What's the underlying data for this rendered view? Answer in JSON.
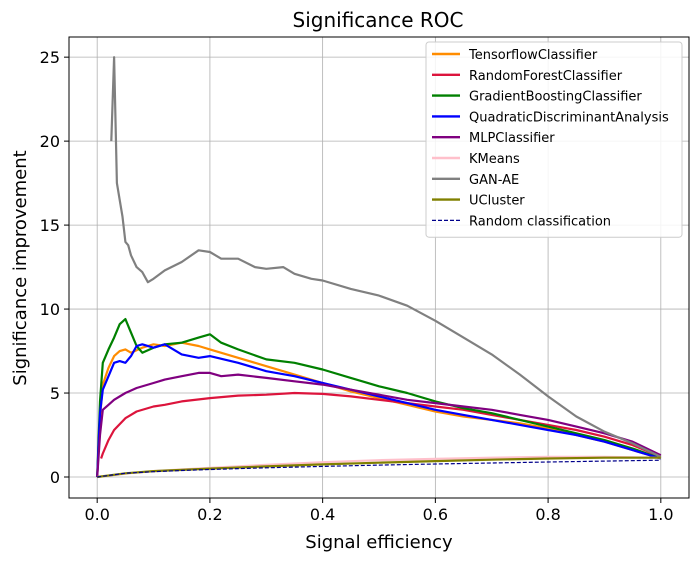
{
  "chart_data": {
    "type": "line",
    "title": "Significance ROC",
    "xlabel": "Signal efficiency",
    "ylabel": "Significance improvement",
    "xlim": [
      -0.05,
      1.05
    ],
    "ylim": [
      -1.25,
      26.2
    ],
    "xticks": [
      0.0,
      0.2,
      0.4,
      0.6,
      0.8,
      1.0
    ],
    "xtick_labels": [
      "0.0",
      "0.2",
      "0.4",
      "0.6",
      "0.8",
      "1.0"
    ],
    "yticks": [
      0,
      5,
      10,
      15,
      20,
      25
    ],
    "ytick_labels": [
      "0",
      "5",
      "10",
      "15",
      "20",
      "25"
    ],
    "grid": true,
    "legend_position": "top-right",
    "series": [
      {
        "name": "TensorflowClassifier",
        "color": "#ff8c00",
        "dash": "solid",
        "x": [
          0.0,
          0.005,
          0.01,
          0.02,
          0.03,
          0.04,
          0.05,
          0.06,
          0.08,
          0.1,
          0.12,
          0.15,
          0.18,
          0.2,
          0.25,
          0.3,
          0.35,
          0.4,
          0.45,
          0.5,
          0.55,
          0.6,
          0.65,
          0.7,
          0.75,
          0.8,
          0.85,
          0.9,
          0.95,
          1.0
        ],
        "y": [
          0.0,
          3.5,
          5.5,
          6.5,
          7.2,
          7.5,
          7.6,
          7.4,
          7.7,
          7.9,
          7.8,
          8.0,
          7.8,
          7.6,
          7.1,
          6.6,
          6.1,
          5.6,
          5.1,
          4.7,
          4.3,
          3.9,
          3.6,
          3.4,
          3.2,
          2.9,
          2.5,
          2.1,
          1.6,
          1.1
        ]
      },
      {
        "name": "RandomForestClassifier",
        "color": "#dc143c",
        "dash": "solid",
        "x": [
          0.007,
          0.01,
          0.02,
          0.03,
          0.05,
          0.07,
          0.1,
          0.12,
          0.15,
          0.2,
          0.25,
          0.3,
          0.35,
          0.4,
          0.45,
          0.5,
          0.55,
          0.6,
          0.65,
          0.7,
          0.75,
          0.8,
          0.85,
          0.9,
          0.95,
          1.0
        ],
        "y": [
          1.1,
          1.4,
          2.2,
          2.8,
          3.5,
          3.9,
          4.2,
          4.3,
          4.5,
          4.7,
          4.85,
          4.9,
          5.0,
          4.95,
          4.8,
          4.6,
          4.4,
          4.2,
          4.0,
          3.7,
          3.4,
          3.1,
          2.8,
          2.4,
          1.9,
          1.2
        ]
      },
      {
        "name": "GradientBoostingClassifier",
        "color": "#008000",
        "dash": "solid",
        "x": [
          0.0,
          0.005,
          0.01,
          0.02,
          0.03,
          0.04,
          0.05,
          0.06,
          0.07,
          0.08,
          0.1,
          0.12,
          0.15,
          0.18,
          0.2,
          0.22,
          0.25,
          0.3,
          0.35,
          0.4,
          0.45,
          0.5,
          0.55,
          0.6,
          0.65,
          0.7,
          0.75,
          0.8,
          0.85,
          0.9,
          0.95,
          1.0
        ],
        "y": [
          0.0,
          4.5,
          6.8,
          7.6,
          8.3,
          9.1,
          9.4,
          8.6,
          7.8,
          7.4,
          7.7,
          7.9,
          8.0,
          8.3,
          8.5,
          8.0,
          7.6,
          7.0,
          6.8,
          6.4,
          5.9,
          5.4,
          5.0,
          4.5,
          4.1,
          3.8,
          3.4,
          3.0,
          2.6,
          2.2,
          1.7,
          1.1
        ]
      },
      {
        "name": "QuadraticDiscriminantAnalysis",
        "color": "#0000ff",
        "dash": "solid",
        "x": [
          0.0,
          0.005,
          0.01,
          0.02,
          0.03,
          0.04,
          0.05,
          0.06,
          0.07,
          0.08,
          0.1,
          0.12,
          0.15,
          0.18,
          0.2,
          0.25,
          0.3,
          0.35,
          0.4,
          0.45,
          0.5,
          0.55,
          0.6,
          0.65,
          0.7,
          0.75,
          0.8,
          0.85,
          0.9,
          0.95,
          1.0
        ],
        "y": [
          0.0,
          3.8,
          5.2,
          6.0,
          6.8,
          6.9,
          6.8,
          7.2,
          7.8,
          7.9,
          7.7,
          7.9,
          7.3,
          7.1,
          7.2,
          6.8,
          6.3,
          6.0,
          5.6,
          5.2,
          4.8,
          4.4,
          4.0,
          3.7,
          3.4,
          3.1,
          2.8,
          2.5,
          2.1,
          1.6,
          1.1
        ]
      },
      {
        "name": "MLPClassifier",
        "color": "#800080",
        "dash": "solid",
        "x": [
          0.0,
          0.005,
          0.01,
          0.02,
          0.03,
          0.05,
          0.07,
          0.1,
          0.12,
          0.15,
          0.18,
          0.2,
          0.22,
          0.25,
          0.3,
          0.35,
          0.4,
          0.45,
          0.5,
          0.55,
          0.6,
          0.65,
          0.7,
          0.75,
          0.8,
          0.85,
          0.9,
          0.95,
          1.0
        ],
        "y": [
          0.0,
          2.5,
          4.0,
          4.3,
          4.6,
          5.0,
          5.3,
          5.6,
          5.8,
          6.0,
          6.2,
          6.2,
          6.0,
          6.1,
          5.9,
          5.7,
          5.5,
          5.2,
          4.9,
          4.6,
          4.4,
          4.2,
          4.0,
          3.7,
          3.4,
          3.0,
          2.6,
          2.1,
          1.3
        ]
      },
      {
        "name": "KMeans",
        "color": "#ffc0cb",
        "dash": "solid",
        "x": [
          0.0,
          0.05,
          0.1,
          0.2,
          0.3,
          0.4,
          0.5,
          0.6,
          0.7,
          0.8,
          0.9,
          1.0
        ],
        "y": [
          0.0,
          0.2,
          0.35,
          0.55,
          0.72,
          0.88,
          1.0,
          1.08,
          1.15,
          1.2,
          1.2,
          1.15
        ]
      },
      {
        "name": "GAN-AE",
        "color": "#808080",
        "dash": "solid",
        "x": [
          0.025,
          0.03,
          0.035,
          0.04,
          0.045,
          0.05,
          0.055,
          0.06,
          0.07,
          0.08,
          0.09,
          0.1,
          0.12,
          0.15,
          0.18,
          0.2,
          0.22,
          0.25,
          0.28,
          0.3,
          0.33,
          0.35,
          0.38,
          0.4,
          0.45,
          0.5,
          0.55,
          0.6,
          0.65,
          0.7,
          0.75,
          0.8,
          0.85,
          0.9,
          0.95,
          1.0
        ],
        "y": [
          20.0,
          25.0,
          17.5,
          16.5,
          15.5,
          14.0,
          13.8,
          13.2,
          12.5,
          12.2,
          11.6,
          11.8,
          12.3,
          12.8,
          13.5,
          13.4,
          13.0,
          13.0,
          12.5,
          12.4,
          12.5,
          12.1,
          11.8,
          11.7,
          11.2,
          10.8,
          10.2,
          9.3,
          8.3,
          7.3,
          6.1,
          4.8,
          3.6,
          2.7,
          2.0,
          1.2
        ]
      },
      {
        "name": "UCluster",
        "color": "#808000",
        "dash": "solid",
        "x": [
          0.0,
          0.05,
          0.1,
          0.2,
          0.3,
          0.4,
          0.5,
          0.6,
          0.7,
          0.8,
          0.9,
          1.0
        ],
        "y": [
          0.0,
          0.22,
          0.35,
          0.5,
          0.63,
          0.75,
          0.85,
          0.95,
          1.03,
          1.1,
          1.15,
          1.15
        ]
      },
      {
        "name": "Random classification",
        "color": "#00008b",
        "dash": "dashed",
        "x": [
          0.0,
          0.05,
          0.1,
          0.15,
          0.2,
          0.3,
          0.4,
          0.5,
          0.6,
          0.7,
          0.8,
          0.9,
          1.0
        ],
        "y": [
          0.0,
          0.224,
          0.316,
          0.387,
          0.447,
          0.548,
          0.632,
          0.707,
          0.775,
          0.837,
          0.894,
          0.949,
          1.0
        ]
      }
    ]
  }
}
